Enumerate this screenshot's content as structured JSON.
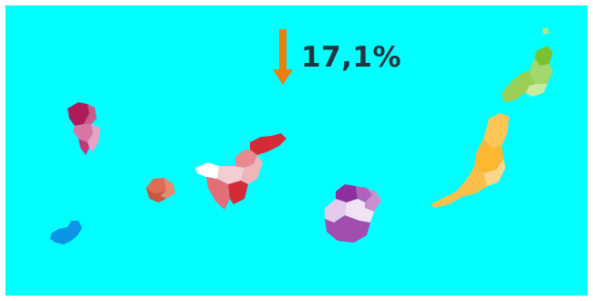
{
  "colors": {
    "sea": "#00ffff",
    "text": "#1f3640",
    "trend_arrow": "#ed7d0e",
    "el_hierro": "#0c94e6",
    "la_palma": [
      "#b01a5a",
      "#cd5a8c",
      "#d975a5",
      "#e7a3c4",
      "#c3377a"
    ],
    "la_gomera": [
      "#de6c55",
      "#e68a74",
      "#c9563f"
    ],
    "tenerife": [
      "#d42b38",
      "#e68a90",
      "#f3cdd0",
      "#ffffff",
      "#e26f78",
      "#f0b5b8"
    ],
    "gran_canaria": [
      "#8d2f9e",
      "#b163bc",
      "#c98fcf",
      "#e4c9ea",
      "#f1e3f4",
      "#a24db0"
    ],
    "fuerteventura": [
      "#ffc557",
      "#ffb733",
      "#ffd68a",
      "#fbbf4a"
    ],
    "lanzarote": [
      "#7cc12e",
      "#a3d96a",
      "#c6eaa1",
      "#9bcf53"
    ]
  },
  "trend": {
    "direction": "down",
    "icon": "arrow-down-icon",
    "value": "17,1%"
  }
}
